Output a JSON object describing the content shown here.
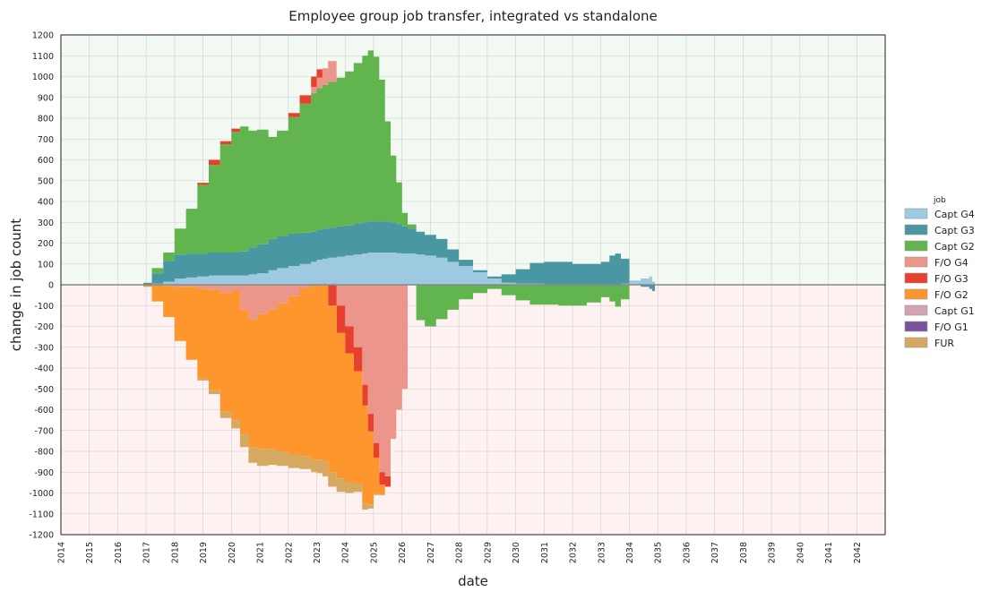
{
  "chart_data": {
    "type": "area",
    "title": "Employee group job transfer, integrated vs standalone",
    "xlabel": "date",
    "ylabel": "change in job count",
    "xlim": [
      2014,
      2043
    ],
    "ylim": [
      -1200,
      1200
    ],
    "x_ticks": [
      "2014",
      "2015",
      "2016",
      "2017",
      "2018",
      "2019",
      "2020",
      "2021",
      "2022",
      "2023",
      "2024",
      "2025",
      "2026",
      "2027",
      "2028",
      "2029",
      "2030",
      "2031",
      "2032",
      "2033",
      "2034",
      "2035",
      "2036",
      "2037",
      "2038",
      "2039",
      "2040",
      "2041",
      "2042"
    ],
    "y_ticks": [
      1200,
      1100,
      1000,
      900,
      800,
      700,
      600,
      500,
      400,
      300,
      200,
      100,
      0,
      -100,
      -200,
      -300,
      -400,
      -500,
      -600,
      -700,
      -800,
      -900,
      -1000,
      -1100,
      -1200
    ],
    "grid": true,
    "stacked": true,
    "step": true,
    "positive_background": "#f2f8f2",
    "negative_background": "#fdf1f1",
    "zero_line_color": "#888888",
    "legend": {
      "title": "job",
      "position": "right",
      "entries": [
        {
          "label": "Capt G4",
          "color": "#9ecae1"
        },
        {
          "label": "Capt G3",
          "color": "#4a97a4"
        },
        {
          "label": "Capt G2",
          "color": "#62b44f"
        },
        {
          "label": "F/O  G4",
          "color": "#ec968b"
        },
        {
          "label": "F/O  G3",
          "color": "#e8402f"
        },
        {
          "label": "F/O  G2",
          "color": "#fc962d"
        },
        {
          "label": "Capt G1",
          "color": "#d3a3b0"
        },
        {
          "label": "F/O  G1",
          "color": "#7b539a"
        },
        {
          "label": "FUR",
          "color": "#d6a962"
        }
      ]
    },
    "x": [
      2016.9,
      2017.2,
      2017.6,
      2018.0,
      2018.4,
      2018.8,
      2019.2,
      2019.6,
      2020.0,
      2020.3,
      2020.6,
      2020.9,
      2021.3,
      2021.6,
      2022.0,
      2022.4,
      2022.8,
      2023.0,
      2023.2,
      2023.4,
      2023.7,
      2024.0,
      2024.3,
      2024.6,
      2024.8,
      2025.0,
      2025.2,
      2025.4,
      2025.6,
      2025.8,
      2026.0,
      2026.2,
      2026.5,
      2026.8,
      2027.2,
      2027.6,
      2028.0,
      2028.5,
      2029.0,
      2029.5,
      2030.0,
      2030.5,
      2031.0,
      2031.5,
      2032.0,
      2032.5,
      2033.0,
      2033.3,
      2033.5,
      2033.7,
      2034.0,
      2034.4,
      2034.7,
      2034.8
    ],
    "series": [
      {
        "name": "Capt G4",
        "color": "#9ecae1",
        "values": [
          0,
          5,
          15,
          30,
          35,
          40,
          45,
          45,
          45,
          45,
          50,
          55,
          70,
          80,
          90,
          100,
          110,
          120,
          125,
          130,
          135,
          140,
          145,
          150,
          155,
          155,
          155,
          155,
          155,
          152,
          150,
          150,
          145,
          140,
          130,
          110,
          90,
          60,
          30,
          10,
          5,
          5,
          0,
          0,
          0,
          0,
          0,
          0,
          0,
          5,
          20,
          30,
          40,
          15
        ]
      },
      {
        "name": "Capt G3",
        "color": "#4a97a4",
        "values": [
          10,
          50,
          100,
          115,
          115,
          110,
          110,
          110,
          110,
          115,
          130,
          140,
          150,
          155,
          155,
          150,
          145,
          145,
          145,
          145,
          145,
          145,
          150,
          150,
          150,
          150,
          150,
          150,
          145,
          140,
          130,
          120,
          110,
          100,
          90,
          60,
          30,
          10,
          10,
          40,
          70,
          100,
          110,
          110,
          100,
          100,
          110,
          140,
          150,
          120,
          0,
          -10,
          -20,
          -30
        ]
      },
      {
        "name": "Capt G2",
        "color": "#62b44f",
        "values": [
          0,
          25,
          40,
          125,
          215,
          330,
          420,
          520,
          580,
          600,
          560,
          550,
          490,
          505,
          560,
          620,
          665,
          680,
          690,
          700,
          715,
          740,
          770,
          800,
          820,
          790,
          680,
          480,
          320,
          200,
          65,
          20,
          -170,
          -200,
          -165,
          -120,
          -70,
          -40,
          -20,
          -50,
          -75,
          -95,
          -95,
          -100,
          -100,
          -85,
          -60,
          -80,
          -105,
          -70,
          0,
          0,
          0,
          0
        ]
      },
      {
        "name": "F/O  G4",
        "color": "#ec968b",
        "values": [
          0,
          0,
          -5,
          -10,
          -10,
          -20,
          -25,
          -40,
          -30,
          -120,
          -170,
          -140,
          -120,
          -90,
          -55,
          -15,
          30,
          50,
          80,
          100,
          -100,
          -200,
          -300,
          -480,
          -620,
          -760,
          -900,
          -920,
          -740,
          -600,
          -500,
          0,
          0,
          0,
          0,
          0,
          0,
          0,
          0,
          0,
          0,
          0,
          0,
          0,
          0,
          0,
          0,
          0,
          0,
          0,
          0,
          0,
          0,
          0
        ]
      },
      {
        "name": "F/O  G3",
        "color": "#e8402f",
        "values": [
          0,
          0,
          0,
          0,
          0,
          10,
          25,
          15,
          15,
          0,
          0,
          0,
          0,
          0,
          20,
          40,
          50,
          40,
          0,
          -100,
          -130,
          -130,
          -115,
          -100,
          -85,
          -70,
          -60,
          -50,
          0,
          0,
          0,
          0,
          0,
          0,
          0,
          0,
          0,
          0,
          0,
          0,
          0,
          0,
          0,
          0,
          0,
          0,
          0,
          0,
          0,
          0,
          0,
          0,
          0,
          0
        ]
      },
      {
        "name": "F/O  G2",
        "color": "#fc962d",
        "values": [
          -10,
          -80,
          -150,
          -260,
          -350,
          -430,
          -480,
          -570,
          -620,
          -600,
          -610,
          -650,
          -670,
          -710,
          -760,
          -810,
          -840,
          -840,
          -850,
          -800,
          -700,
          -620,
          -540,
          -470,
          -350,
          -170,
          -50,
          0,
          0,
          0,
          0,
          0,
          0,
          0,
          0,
          0,
          0,
          0,
          0,
          0,
          0,
          0,
          0,
          0,
          0,
          0,
          0,
          0,
          0,
          0,
          0,
          0,
          0,
          0
        ]
      },
      {
        "name": "Capt G1",
        "color": "#d3a3b0",
        "values": [
          0,
          0,
          0,
          0,
          0,
          0,
          0,
          0,
          0,
          0,
          0,
          0,
          0,
          0,
          0,
          0,
          0,
          0,
          0,
          0,
          0,
          0,
          0,
          0,
          0,
          0,
          0,
          0,
          0,
          0,
          0,
          0,
          0,
          0,
          0,
          0,
          0,
          0,
          0,
          0,
          0,
          0,
          0,
          0,
          0,
          0,
          0,
          0,
          0,
          0,
          0,
          0,
          0,
          0
        ]
      },
      {
        "name": "F/O  G1",
        "color": "#7b539a",
        "values": [
          0,
          0,
          0,
          0,
          0,
          0,
          0,
          0,
          0,
          0,
          0,
          0,
          0,
          0,
          0,
          0,
          0,
          0,
          0,
          0,
          0,
          0,
          0,
          0,
          0,
          0,
          0,
          0,
          0,
          0,
          0,
          0,
          0,
          0,
          0,
          0,
          0,
          0,
          0,
          0,
          0,
          0,
          0,
          0,
          0,
          0,
          0,
          0,
          0,
          0,
          0,
          0,
          0,
          0
        ]
      },
      {
        "name": "FUR",
        "color": "#d6a962",
        "values": [
          0,
          0,
          0,
          0,
          0,
          -10,
          -20,
          -30,
          -40,
          -60,
          -75,
          -80,
          -75,
          -70,
          -65,
          -60,
          -60,
          -65,
          -70,
          -70,
          -65,
          -50,
          -40,
          -30,
          -20,
          -10,
          0,
          0,
          0,
          0,
          0,
          0,
          0,
          0,
          0,
          0,
          0,
          0,
          0,
          0,
          0,
          0,
          0,
          0,
          0,
          0,
          0,
          0,
          0,
          0,
          0,
          0,
          0,
          0
        ]
      }
    ]
  }
}
